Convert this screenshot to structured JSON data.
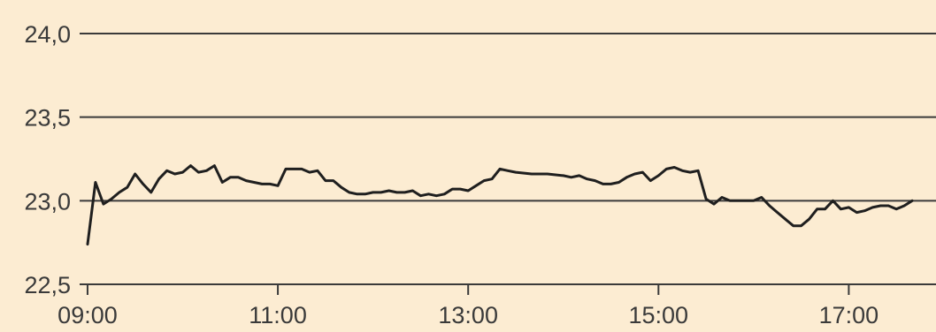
{
  "chart_data": {
    "type": "line",
    "title": "",
    "xlabel": "",
    "ylabel": "",
    "ylim": [
      22.5,
      24.0
    ],
    "xlim": [
      "08:55",
      "17:55"
    ],
    "y_ticks": [
      {
        "value": 24.0,
        "label": "24,0"
      },
      {
        "value": 23.5,
        "label": "23,5"
      },
      {
        "value": 23.0,
        "label": "23,0"
      },
      {
        "value": 22.5,
        "label": "22,5"
      }
    ],
    "x_ticks": [
      "09:00",
      "11:00",
      "13:00",
      "15:00",
      "17:00"
    ],
    "grid": true,
    "legend": "none",
    "colors": {
      "line": "#1f1f1f",
      "grid": "#3a3a3a",
      "background": "#fcecd2",
      "text": "#3a3a3a"
    },
    "series": [
      {
        "x": [
          "09:00",
          "09:05",
          "09:10",
          "09:15",
          "09:20",
          "09:25",
          "09:30",
          "09:35",
          "09:40",
          "09:45",
          "09:50",
          "09:55",
          "10:00",
          "10:05",
          "10:10",
          "10:15",
          "10:20",
          "10:25",
          "10:30",
          "10:35",
          "10:40",
          "10:45",
          "10:50",
          "10:55",
          "11:00",
          "11:05",
          "11:10",
          "11:15",
          "11:20",
          "11:25",
          "11:30",
          "11:35",
          "11:40",
          "11:45",
          "11:50",
          "11:55",
          "12:00",
          "12:05",
          "12:10",
          "12:15",
          "12:20",
          "12:25",
          "12:30",
          "12:35",
          "12:40",
          "12:45",
          "12:50",
          "12:55",
          "13:00",
          "13:05",
          "13:10",
          "13:15",
          "13:20",
          "13:25",
          "13:30",
          "13:40",
          "13:50",
          "14:00",
          "14:05",
          "14:10",
          "14:15",
          "14:20",
          "14:25",
          "14:30",
          "14:35",
          "14:40",
          "14:45",
          "14:50",
          "14:55",
          "15:00",
          "15:05",
          "15:10",
          "15:15",
          "15:20",
          "15:25",
          "15:30",
          "15:35",
          "15:40",
          "15:45",
          "15:50",
          "15:55",
          "16:00",
          "16:05",
          "16:10",
          "16:15",
          "16:20",
          "16:25",
          "16:30",
          "16:35",
          "16:40",
          "16:45",
          "16:50",
          "16:55",
          "17:00",
          "17:05",
          "17:10",
          "17:15",
          "17:20",
          "17:25",
          "17:30",
          "17:35",
          "17:40"
        ],
        "values": [
          22.74,
          23.11,
          22.98,
          23.01,
          23.05,
          23.08,
          23.16,
          23.1,
          23.05,
          23.13,
          23.18,
          23.16,
          23.17,
          23.21,
          23.17,
          23.18,
          23.21,
          23.11,
          23.14,
          23.14,
          23.12,
          23.11,
          23.1,
          23.1,
          23.09,
          23.19,
          23.19,
          23.19,
          23.17,
          23.18,
          23.12,
          23.12,
          23.08,
          23.05,
          23.04,
          23.04,
          23.05,
          23.05,
          23.06,
          23.05,
          23.05,
          23.06,
          23.03,
          23.04,
          23.03,
          23.04,
          23.07,
          23.07,
          23.06,
          23.09,
          23.12,
          23.13,
          23.19,
          23.18,
          23.17,
          23.16,
          23.16,
          23.15,
          23.14,
          23.15,
          23.13,
          23.12,
          23.1,
          23.1,
          23.11,
          23.14,
          23.16,
          23.17,
          23.12,
          23.15,
          23.19,
          23.2,
          23.18,
          23.17,
          23.18,
          23.01,
          22.98,
          23.02,
          23.0,
          23.0,
          23.0,
          23.0,
          23.02,
          22.97,
          22.93,
          22.89,
          22.85,
          22.85,
          22.89,
          22.95,
          22.95,
          23.0,
          22.95,
          22.96,
          22.93,
          22.94,
          22.96,
          22.97,
          22.97,
          22.95,
          22.97,
          23.0
        ]
      }
    ]
  }
}
